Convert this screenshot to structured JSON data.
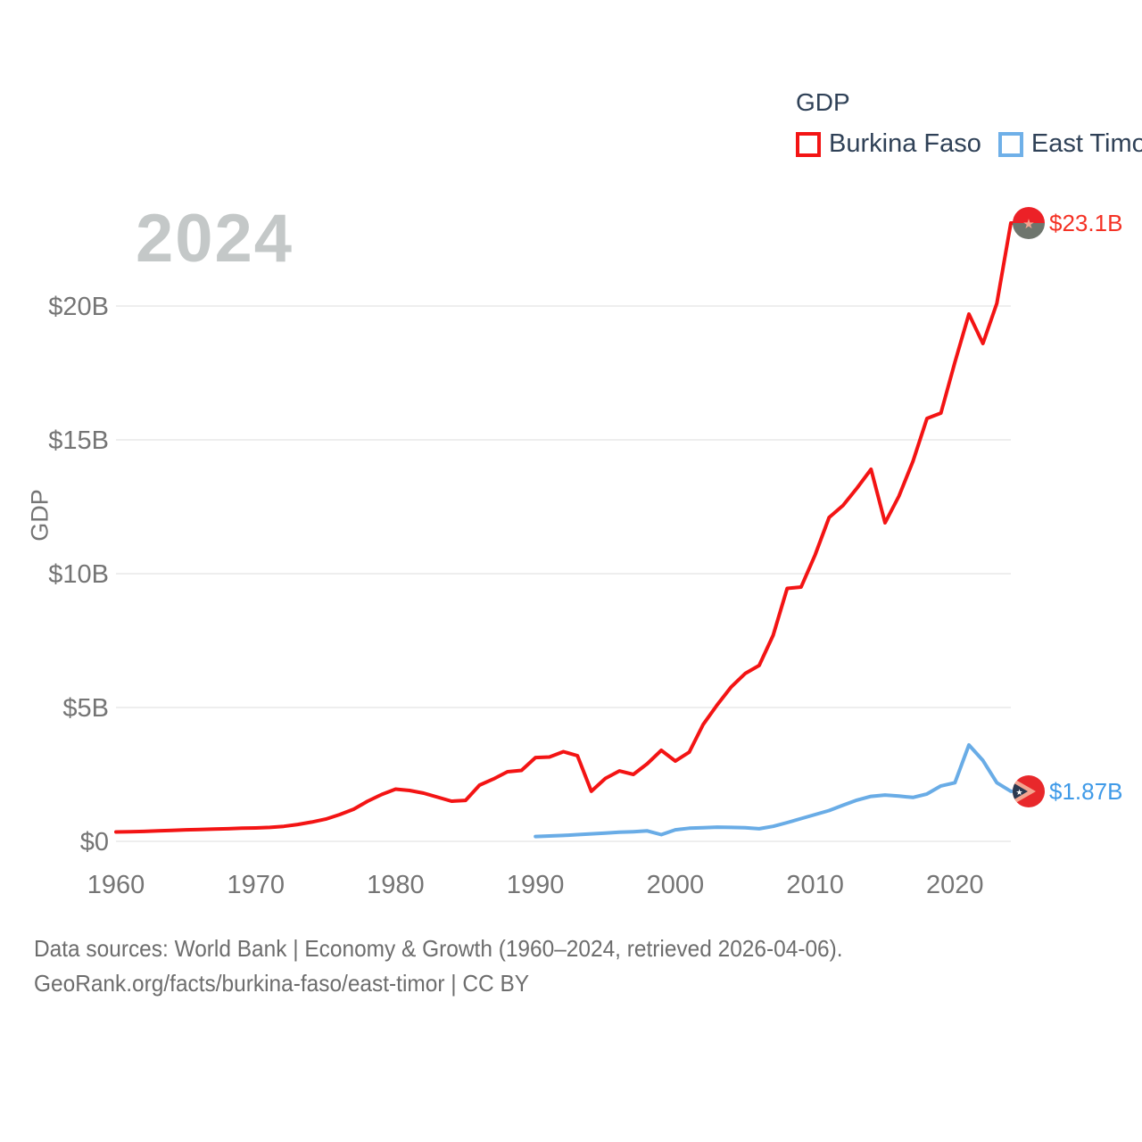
{
  "watermark_year": "2024",
  "legend": {
    "title": "GDP",
    "items": [
      {
        "label": "Burkina Faso",
        "color": "#f31414"
      },
      {
        "label": "East Timor",
        "color": "#6fb0e8"
      }
    ]
  },
  "footer": {
    "line1": "Data sources: World Bank | Economy & Growth (1960–2024, retrieved 2026-04-06).",
    "line2": "GeoRank.org/facts/burkina-faso/east-timor | CC BY"
  },
  "colors": {
    "red_line": "#f31414",
    "red_text": "#f43225",
    "blue_line": "#69ace6",
    "blue_text": "#3f9ae8",
    "grid": "#e8e8e8",
    "tick": "#757575",
    "legend_text": "#2f4157",
    "watermark": "#c4c8c8",
    "footer_text": "#6d6d6d"
  },
  "chart_data": {
    "type": "line",
    "title": "GDP",
    "xlabel": "",
    "ylabel": "GDP",
    "x_ticks": [
      {
        "label": "1960",
        "year": 1960
      },
      {
        "label": "1970",
        "year": 1970
      },
      {
        "label": "1980",
        "year": 1980
      },
      {
        "label": "1990",
        "year": 1990
      },
      {
        "label": "2000",
        "year": 2000
      },
      {
        "label": "2010",
        "year": 2010
      },
      {
        "label": "2020",
        "year": 2020
      }
    ],
    "y_ticks": [
      {
        "label": "$0",
        "value": 0
      },
      {
        "label": "$5B",
        "value": 5
      },
      {
        "label": "$10B",
        "value": 10
      },
      {
        "label": "$15B",
        "value": 15
      },
      {
        "label": "$20B",
        "value": 20
      }
    ],
    "x_range": [
      1960,
      2024
    ],
    "ylim": [
      0,
      23.5
    ],
    "grid": "horizontal",
    "legend_position": "top-right",
    "units": "billions USD",
    "series": [
      {
        "name": "Burkina Faso",
        "end_label": "$23.1B",
        "start_year": 1960,
        "values": [
          0.35,
          0.36,
          0.37,
          0.39,
          0.41,
          0.43,
          0.44,
          0.46,
          0.47,
          0.49,
          0.5,
          0.52,
          0.56,
          0.63,
          0.72,
          0.83,
          1.0,
          1.2,
          1.5,
          1.75,
          1.95,
          1.9,
          1.8,
          1.65,
          1.5,
          1.53,
          2.1,
          2.33,
          2.6,
          2.65,
          3.13,
          3.15,
          3.35,
          3.2,
          1.87,
          2.35,
          2.63,
          2.5,
          2.9,
          3.4,
          3.0,
          3.33,
          4.37,
          5.1,
          5.77,
          6.27,
          6.57,
          7.7,
          9.45,
          9.5,
          10.7,
          12.1,
          12.55,
          13.2,
          13.9,
          11.9,
          12.9,
          14.2,
          15.8,
          16.0,
          17.9,
          19.7,
          18.6,
          20.1,
          23.1
        ]
      },
      {
        "name": "East Timor",
        "end_label": "$1.87B",
        "start_year": 1990,
        "values": [
          0.18,
          0.2,
          0.22,
          0.25,
          0.28,
          0.31,
          0.34,
          0.36,
          0.39,
          0.25,
          0.43,
          0.49,
          0.51,
          0.53,
          0.52,
          0.51,
          0.47,
          0.56,
          0.7,
          0.85,
          1.0,
          1.15,
          1.35,
          1.54,
          1.68,
          1.73,
          1.69,
          1.64,
          1.77,
          2.07,
          2.19,
          3.6,
          3.02,
          2.19,
          1.87
        ]
      }
    ]
  }
}
